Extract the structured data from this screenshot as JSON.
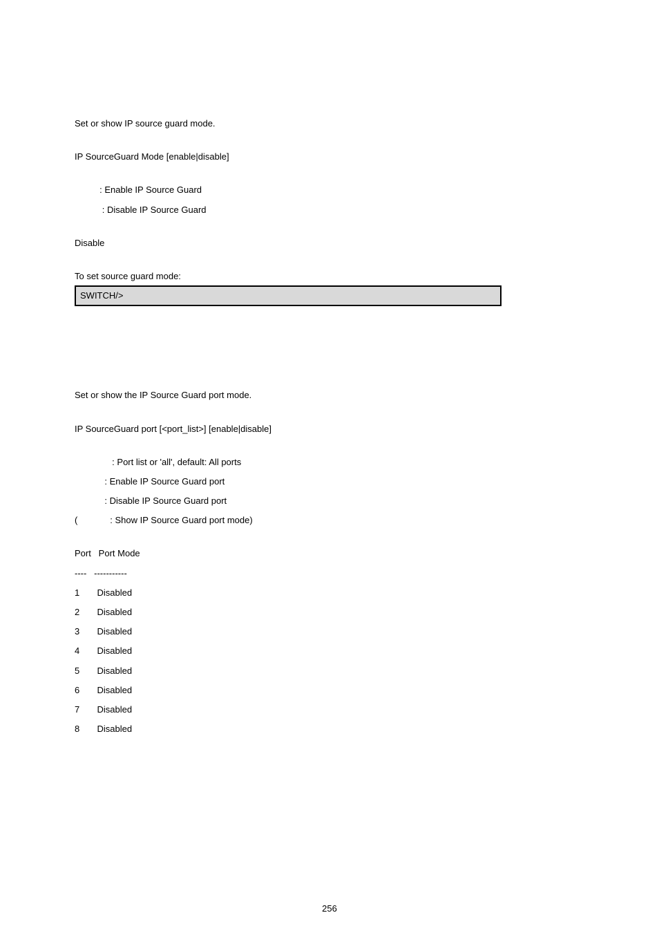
{
  "section1": {
    "desc": "Set or show IP source guard mode.",
    "syntax": "IP SourceGuard Mode [enable|disable]",
    "param_enable": "          : Enable IP Source Guard",
    "param_disable": "           : Disable IP Source Guard",
    "default": "Disable",
    "example_label": "To set source guard mode:",
    "example_cmd": "SWITCH/>"
  },
  "section2": {
    "desc": "Set or show the IP Source Guard port mode.",
    "syntax": "IP SourceGuard port [<port_list>] [enable|disable]",
    "param_portlist": "               : Port list or 'all', default: All ports",
    "param_enable": "            : Enable IP Source Guard port",
    "param_disable": "            : Disable IP Source Guard port",
    "param_default": "(             : Show IP Source Guard port mode)",
    "table_header": "Port   Port Mode",
    "table_divider": "----   -----------",
    "rows": [
      {
        "port": "1",
        "mode": "Disabled"
      },
      {
        "port": "2",
        "mode": "Disabled"
      },
      {
        "port": "3",
        "mode": "Disabled"
      },
      {
        "port": "4",
        "mode": "Disabled"
      },
      {
        "port": "5",
        "mode": "Disabled"
      },
      {
        "port": "6",
        "mode": "Disabled"
      },
      {
        "port": "7",
        "mode": "Disabled"
      },
      {
        "port": "8",
        "mode": "Disabled"
      }
    ]
  },
  "page_number": "256",
  "colors": {
    "background": "#ffffff",
    "text": "#000000",
    "codebox_bg": "#d9d9d9",
    "codebox_border": "#000000"
  },
  "typography": {
    "body_fontsize": 13,
    "font_family": "Arial"
  }
}
